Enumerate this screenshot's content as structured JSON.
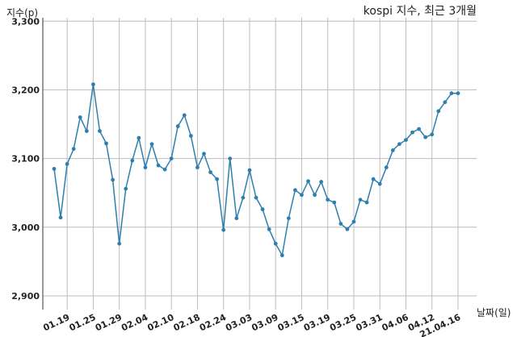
{
  "chart_data": {
    "type": "line",
    "title": "kospi 지수, 최근 3개월",
    "ylabel": "지수(p)",
    "xlabel": "날짜(일)",
    "ylim": [
      2880,
      3305
    ],
    "yticks": [
      2900,
      3000,
      3100,
      3200,
      3300
    ],
    "ytick_labels": [
      "2,900",
      "3,000",
      "3,100",
      "3,200",
      "3,300"
    ],
    "xtick_labels": [
      "01.19",
      "01.25",
      "01.29",
      "02.04",
      "02.10",
      "02.18",
      "02.24",
      "03.03",
      "03.09",
      "03.15",
      "03.19",
      "03.25",
      "03.31",
      "04.06",
      "04.12",
      "21.04.16"
    ],
    "xtick_index": [
      2,
      6,
      10,
      14,
      18,
      22,
      26,
      30,
      34,
      38,
      42,
      46,
      50,
      54,
      58,
      62
    ],
    "grid": true,
    "series": [
      {
        "color": "#2f7fae",
        "values": [
          3085,
          3014,
          3092,
          3114,
          3160,
          3140,
          3208,
          3140,
          3122,
          3069,
          2976,
          3056,
          3097,
          3130,
          3087,
          3121,
          3090,
          3084,
          3100,
          3147,
          3163,
          3133,
          3087,
          3107,
          3080,
          3070,
          2996,
          3100,
          3013,
          3043,
          3083,
          3043,
          3026,
          2997,
          2976,
          2959,
          3013,
          3054,
          3047,
          3067,
          3047,
          3066,
          3040,
          3036,
          3005,
          2997,
          3008,
          3040,
          3036,
          3070,
          3063,
          3087,
          3112,
          3121,
          3127,
          3138,
          3143,
          3131,
          3135,
          3169,
          3182,
          3195,
          3195
        ]
      }
    ]
  }
}
